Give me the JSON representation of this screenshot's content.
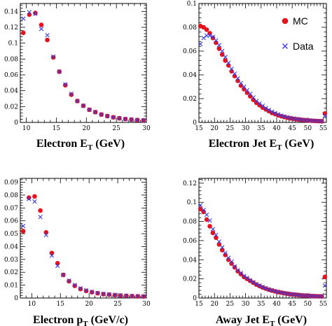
{
  "figure": {
    "legend": {
      "placement": "top-right",
      "entries": [
        "MC",
        "Data"
      ]
    },
    "colors": {
      "mc": "#e8101b",
      "data": "#3a3adf",
      "axis": "#000000"
    }
  },
  "chart_data": [
    {
      "id": "electron-et",
      "type": "scatter",
      "xlabel": {
        "main": "Electron E",
        "sub": "T",
        "tail": " (GeV)"
      },
      "xlim": [
        9,
        30
      ],
      "ylim": [
        0,
        0.15
      ],
      "xticks": [
        10,
        15,
        20,
        25,
        30
      ],
      "yticks": [
        0,
        0.02,
        0.04,
        0.06,
        0.08,
        0.1,
        0.12,
        0.14
      ],
      "yticklabels": [
        "0",
        "0.02",
        "0.04",
        "0.06",
        "0.08",
        "0.1",
        "0.12",
        "0.14"
      ],
      "series": [
        {
          "name": "MC",
          "marker": "dot",
          "x": [
            9.5,
            10.5,
            11.5,
            12.5,
            13.5,
            14.5,
            15.5,
            16.5,
            17.5,
            18.5,
            19.5,
            20.5,
            21.5,
            22.5,
            23.5,
            24.5,
            25.5,
            26.5,
            27.5,
            28.5,
            29.5
          ],
          "y": [
            0.113,
            0.136,
            0.138,
            0.123,
            0.104,
            0.082,
            0.064,
            0.047,
            0.035,
            0.027,
            0.021,
            0.016,
            0.013,
            0.01,
            0.008,
            0.0065,
            0.0052,
            0.0043,
            0.0036,
            0.003,
            0.0026
          ]
        },
        {
          "name": "Data",
          "marker": "x",
          "x": [
            9.5,
            10.5,
            11.5,
            12.5,
            13.5,
            14.5,
            15.5,
            16.5,
            17.5,
            18.5,
            19.5,
            20.5,
            21.5,
            22.5,
            23.5,
            24.5,
            25.5,
            26.5,
            27.5,
            28.5,
            29.5
          ],
          "y": [
            0.131,
            0.139,
            0.137,
            0.118,
            0.11,
            0.083,
            0.064,
            0.048,
            0.036,
            0.027,
            0.021,
            0.016,
            0.013,
            0.01,
            0.008,
            0.0064,
            0.0052,
            0.0043,
            0.0036,
            0.003,
            0.0026
          ]
        }
      ]
    },
    {
      "id": "electron-jet-et",
      "type": "scatter",
      "xlabel": {
        "main": "Electron Jet E",
        "sub": "T",
        "tail": " (GeV)"
      },
      "xlim": [
        15,
        56
      ],
      "ylim": [
        0,
        0.1
      ],
      "xticks": [
        15,
        20,
        25,
        30,
        35,
        40,
        45,
        50,
        55
      ],
      "yticks": [
        0,
        0.02,
        0.04,
        0.06,
        0.08,
        0.1
      ],
      "yticklabels": [
        "0",
        "0.02",
        "0.04",
        "0.06",
        "0.08",
        "0.1"
      ],
      "series": [
        {
          "name": "MC",
          "marker": "dot",
          "x": [
            15.5,
            16.5,
            17.5,
            18.5,
            19.5,
            20.5,
            21.5,
            22.5,
            23.5,
            24.5,
            25.5,
            26.5,
            27.5,
            28.5,
            29.5,
            30.5,
            31.5,
            32.5,
            33.5,
            34.5,
            35.5,
            36.5,
            37.5,
            38.5,
            39.5,
            40.5,
            41.5,
            42.5,
            43.5,
            44.5,
            45.5,
            46.5,
            47.5,
            48.5,
            49.5,
            50.5,
            51.5,
            52.5,
            53.5,
            54.5,
            55.5
          ],
          "y": [
            0.081,
            0.08,
            0.078,
            0.075,
            0.071,
            0.067,
            0.062,
            0.057,
            0.052,
            0.048,
            0.043,
            0.039,
            0.035,
            0.031,
            0.028,
            0.025,
            0.022,
            0.019,
            0.0165,
            0.0145,
            0.0125,
            0.011,
            0.0095,
            0.008,
            0.007,
            0.006,
            0.0052,
            0.0045,
            0.0039,
            0.0034,
            0.003,
            0.0026,
            0.0023,
            0.002,
            0.0018,
            0.0016,
            0.0014,
            0.0012,
            0.0011,
            0.001,
            0.0075
          ]
        },
        {
          "name": "Data",
          "marker": "x",
          "x": [
            15.5,
            16.5,
            17.5,
            18.5,
            19.5,
            20.5,
            21.5,
            22.5,
            23.5,
            24.5,
            25.5,
            26.5,
            27.5,
            28.5,
            29.5,
            30.5,
            31.5,
            32.5,
            33.5,
            34.5,
            35.5,
            36.5,
            37.5,
            38.5,
            39.5,
            40.5,
            41.5,
            42.5,
            43.5,
            44.5,
            45.5,
            46.5,
            47.5,
            48.5,
            49.5,
            50.5,
            51.5,
            52.5,
            53.5,
            54.5,
            55.5
          ],
          "y": [
            0.066,
            0.071,
            0.073,
            0.073,
            0.072,
            0.069,
            0.065,
            0.06,
            0.055,
            0.05,
            0.045,
            0.041,
            0.037,
            0.033,
            0.03,
            0.027,
            0.024,
            0.021,
            0.018,
            0.016,
            0.014,
            0.012,
            0.0105,
            0.009,
            0.0078,
            0.0068,
            0.0058,
            0.005,
            0.0044,
            0.0038,
            0.0033,
            0.0029,
            0.0025,
            0.0022,
            0.0019,
            0.0017,
            0.0015,
            0.0013,
            0.0012,
            0.0011,
            0.0055
          ]
        }
      ]
    },
    {
      "id": "electron-pt",
      "type": "scatter",
      "xlabel": {
        "main": "Electron p",
        "sub": "T",
        "tail": " (GeV/c)"
      },
      "xlim": [
        8,
        30
      ],
      "ylim": [
        0,
        0.093
      ],
      "xticks": [
        10,
        15,
        20,
        25,
        30
      ],
      "yticks": [
        0,
        0.01,
        0.02,
        0.03,
        0.04,
        0.05,
        0.06,
        0.07,
        0.08,
        0.09
      ],
      "yticklabels": [
        "0",
        "0.01",
        "0.02",
        "0.03",
        "0.04",
        "0.05",
        "0.06",
        "0.07",
        "0.08",
        "0.09"
      ],
      "series": [
        {
          "name": "MC",
          "marker": "dot",
          "x": [
            8.5,
            9.5,
            10.5,
            11.5,
            12.5,
            13.5,
            14.5,
            15.5,
            16.5,
            17.5,
            18.5,
            19.5,
            20.5,
            21.5,
            22.5,
            23.5,
            24.5,
            25.5,
            26.5,
            27.5,
            28.5,
            29.5
          ],
          "y": [
            0.052,
            0.078,
            0.079,
            0.068,
            0.051,
            0.035,
            0.027,
            0.018,
            0.013,
            0.0095,
            0.007,
            0.0055,
            0.0045,
            0.0037,
            0.003,
            0.0026,
            0.0022,
            0.0019,
            0.0017,
            0.0015,
            0.0013,
            0.0012
          ]
        },
        {
          "name": "Data",
          "marker": "x",
          "x": [
            8.5,
            9.5,
            10.5,
            11.5,
            12.5,
            13.5,
            14.5,
            15.5,
            16.5,
            17.5,
            18.5,
            19.5,
            20.5,
            21.5,
            22.5,
            23.5,
            24.5,
            25.5,
            26.5,
            27.5,
            28.5,
            29.5
          ],
          "y": [
            0.056,
            0.077,
            0.075,
            0.063,
            0.049,
            0.033,
            0.025,
            0.018,
            0.0135,
            0.01,
            0.0075,
            0.006,
            0.0048,
            0.004,
            0.0033,
            0.0028,
            0.0024,
            0.002,
            0.0018,
            0.0016,
            0.0014,
            0.0013
          ]
        }
      ]
    },
    {
      "id": "away-jet-et",
      "type": "scatter",
      "xlabel": {
        "main": "Away Jet E",
        "sub": "T",
        "tail": " (GeV)"
      },
      "xlim": [
        15,
        56
      ],
      "ylim": [
        0,
        0.125
      ],
      "xticks": [
        15,
        20,
        25,
        30,
        35,
        40,
        45,
        50,
        55
      ],
      "yticks": [
        0,
        0.02,
        0.04,
        0.06,
        0.08,
        0.1,
        0.12
      ],
      "yticklabels": [
        "0",
        "0.02",
        "0.04",
        "0.06",
        "0.08",
        "0.1",
        "0.12"
      ],
      "series": [
        {
          "name": "MC",
          "marker": "dot",
          "x": [
            15.5,
            16.5,
            17.5,
            18.5,
            19.5,
            20.5,
            21.5,
            22.5,
            23.5,
            24.5,
            25.5,
            26.5,
            27.5,
            28.5,
            29.5,
            30.5,
            31.5,
            32.5,
            33.5,
            34.5,
            35.5,
            36.5,
            37.5,
            38.5,
            39.5,
            40.5,
            41.5,
            42.5,
            43.5,
            44.5,
            45.5,
            46.5,
            47.5,
            48.5,
            49.5,
            50.5,
            51.5,
            52.5,
            53.5,
            54.5,
            55.5
          ],
          "y": [
            0.093,
            0.09,
            0.082,
            0.075,
            0.068,
            0.063,
            0.056,
            0.05,
            0.045,
            0.04,
            0.036,
            0.032,
            0.028,
            0.025,
            0.022,
            0.02,
            0.018,
            0.016,
            0.014,
            0.0125,
            0.011,
            0.0098,
            0.0087,
            0.0078,
            0.007,
            0.0062,
            0.0056,
            0.005,
            0.0045,
            0.004,
            0.0036,
            0.0033,
            0.003,
            0.0027,
            0.0025,
            0.0023,
            0.0021,
            0.0019,
            0.0018,
            0.0017,
            0.022
          ]
        },
        {
          "name": "Data",
          "marker": "x",
          "x": [
            15.5,
            16.5,
            17.5,
            18.5,
            19.5,
            20.5,
            21.5,
            22.5,
            23.5,
            24.5,
            25.5,
            26.5,
            27.5,
            28.5,
            29.5,
            30.5,
            31.5,
            32.5,
            33.5,
            34.5,
            35.5,
            36.5,
            37.5,
            38.5,
            39.5,
            40.5,
            41.5,
            42.5,
            43.5,
            44.5,
            45.5,
            46.5,
            47.5,
            48.5,
            49.5,
            50.5,
            51.5,
            52.5,
            53.5,
            54.5,
            55.5
          ],
          "y": [
            0.097,
            0.092,
            0.087,
            0.081,
            0.072,
            0.066,
            0.059,
            0.053,
            0.047,
            0.042,
            0.038,
            0.033,
            0.029,
            0.026,
            0.023,
            0.021,
            0.0185,
            0.0165,
            0.0145,
            0.013,
            0.0115,
            0.0102,
            0.009,
            0.008,
            0.0072,
            0.0064,
            0.0057,
            0.0051,
            0.0046,
            0.0041,
            0.0037,
            0.0033,
            0.003,
            0.0027,
            0.0025,
            0.0023,
            0.0021,
            0.0019,
            0.0018,
            0.0017,
            0.013
          ]
        }
      ]
    }
  ]
}
